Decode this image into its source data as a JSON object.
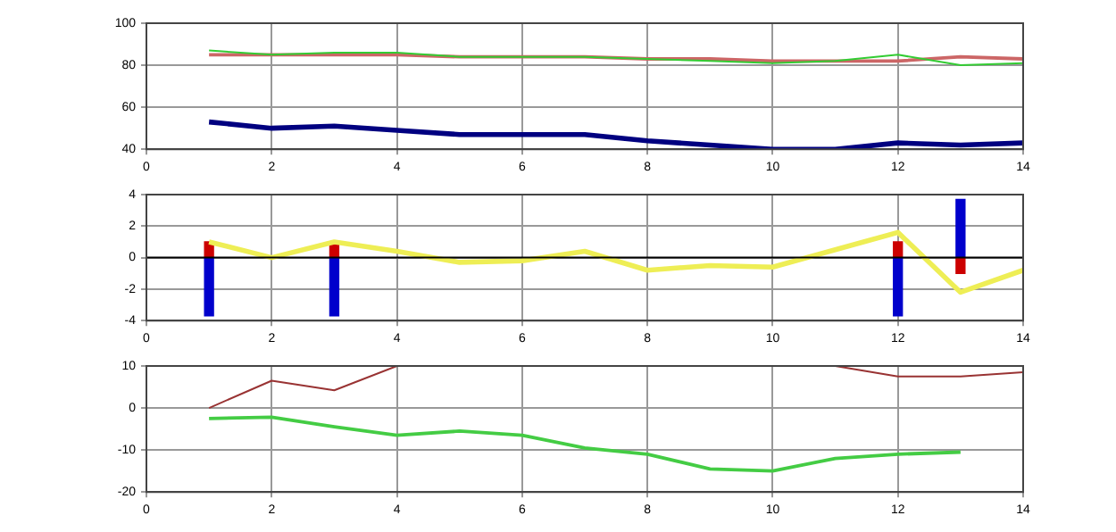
{
  "chart_data": [
    {
      "type": "line",
      "x": [
        1,
        2,
        3,
        4,
        5,
        6,
        7,
        8,
        9,
        10,
        11,
        12,
        13,
        14
      ],
      "xlim": [
        0,
        14
      ],
      "xticks": [
        0,
        2,
        4,
        6,
        8,
        10,
        12,
        14
      ],
      "ylim": [
        40,
        100
      ],
      "yticks": [
        40,
        60,
        80,
        100
      ],
      "grid": true,
      "series": [
        {
          "color": "#33cc33",
          "values": [
            87,
            85,
            86,
            86,
            84,
            84,
            84,
            83,
            82,
            81,
            82,
            85,
            80,
            81
          ]
        },
        {
          "color": "#cc6666",
          "values": [
            85,
            85,
            85,
            85,
            84,
            84,
            84,
            83,
            83,
            82,
            82,
            82,
            84,
            83
          ]
        },
        {
          "color": "#000080",
          "values": [
            53,
            50,
            51,
            49,
            47,
            47,
            47,
            44,
            42,
            40,
            40,
            43,
            42,
            43
          ]
        }
      ]
    },
    {
      "type": "bar",
      "stacked": true,
      "x": [
        1,
        3,
        12,
        13
      ],
      "xlim": [
        0,
        14
      ],
      "xticks": [
        0,
        2,
        4,
        6,
        8,
        10,
        12,
        14
      ],
      "ylim": [
        -4,
        4
      ],
      "yticks": [
        -4,
        -2,
        0,
        2,
        4
      ],
      "grid": true,
      "ref_lines": [
        {
          "axis": "y",
          "value": 0,
          "color": "#000000"
        }
      ],
      "series": [
        {
          "color": "#cc0000",
          "values": [
            1,
            1,
            1,
            -1
          ]
        },
        {
          "color": "#0000cc",
          "values": [
            -3.7,
            -3.7,
            -3.7,
            3.7
          ]
        },
        {
          "type": "line",
          "color": "#eeee55",
          "x": [
            1,
            2,
            3,
            4,
            5,
            6,
            7,
            8,
            9,
            10,
            11,
            12,
            13,
            14
          ],
          "values": [
            1,
            0,
            1,
            0.4,
            -0.3,
            -0.2,
            0.4,
            -0.8,
            -0.5,
            -0.6,
            0.5,
            1.6,
            -2.2,
            -0.8
          ]
        }
      ]
    },
    {
      "type": "line",
      "x": [
        1,
        2,
        3,
        4,
        5,
        6,
        7,
        8,
        9,
        10,
        11,
        12,
        13,
        14
      ],
      "xlim": [
        0,
        14
      ],
      "xticks": [
        0,
        2,
        4,
        6,
        8,
        10,
        12,
        14
      ],
      "ylim": [
        -20,
        10
      ],
      "yticks": [
        -20,
        -10,
        0,
        10
      ],
      "grid": true,
      "series": [
        {
          "color": "#993333",
          "values": [
            0,
            6.5,
            4.2,
            10,
            null,
            null,
            null,
            null,
            null,
            null,
            10,
            7.5,
            7.5,
            8.5
          ]
        },
        {
          "color": "#44cc44",
          "values": [
            -2.5,
            -2.2,
            -4.5,
            -6.5,
            -5.5,
            -6.5,
            -9.5,
            -11,
            -14.5,
            -15,
            -12,
            -11,
            -10.5,
            null
          ]
        }
      ]
    }
  ]
}
